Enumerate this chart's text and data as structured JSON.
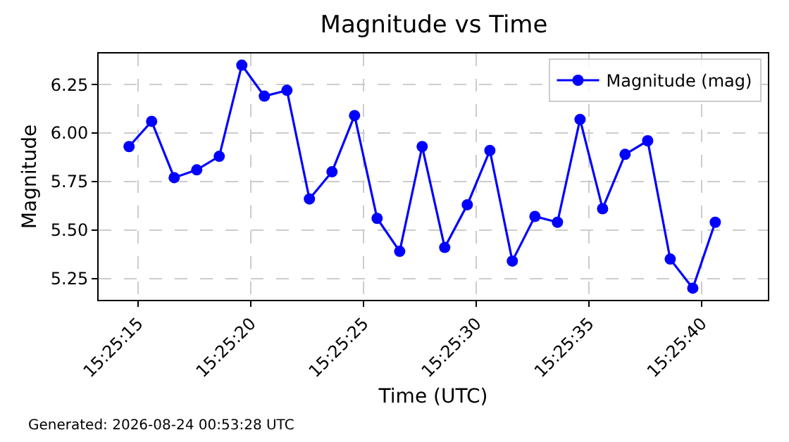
{
  "chart_data": {
    "type": "line",
    "title": "Magnitude vs Time",
    "xlabel": "Time (UTC)",
    "ylabel": "Magnitude",
    "x": [
      15.420722,
      15.421,
      15.421278,
      15.421556,
      15.421833,
      15.422111,
      15.422389,
      15.422667,
      15.422944,
      15.423222,
      15.4235,
      15.423778,
      15.424056,
      15.424333,
      15.424611,
      15.424889,
      15.425167,
      15.425444,
      15.425722,
      15.426,
      15.426278,
      15.426556,
      15.426833,
      15.427111,
      15.427389,
      15.427667,
      15.427944
    ],
    "series": [
      {
        "name": "Magnitude (mag)",
        "color": "#0000ff",
        "values": [
          5.93,
          6.06,
          5.77,
          5.81,
          5.88,
          6.35,
          6.19,
          6.22,
          5.66,
          5.8,
          6.09,
          5.56,
          5.39,
          5.93,
          5.41,
          5.63,
          5.91,
          5.34,
          5.57,
          5.54,
          6.07,
          5.61,
          5.89,
          5.96,
          5.35,
          5.2,
          5.54
        ]
      }
    ],
    "xlim": [
      15.420347,
      15.428592
    ],
    "xticks": [
      {
        "value": 15.420833,
        "label": "15:25:15"
      },
      {
        "value": 15.422222,
        "label": "15:25:20"
      },
      {
        "value": 15.423611,
        "label": "15:25:25"
      },
      {
        "value": 15.425,
        "label": "15:25:30"
      },
      {
        "value": 15.426389,
        "label": "15:25:35"
      },
      {
        "value": 15.427778,
        "label": "15:25:40"
      }
    ],
    "ylim": [
      5.14,
      6.41
    ],
    "yticks": [
      {
        "value": 5.25,
        "label": "5.25"
      },
      {
        "value": 5.5,
        "label": "5.50"
      },
      {
        "value": 5.75,
        "label": "5.75"
      },
      {
        "value": 6,
        "label": "6.00"
      },
      {
        "value": 6.25,
        "label": "6.25"
      }
    ],
    "grid": true,
    "legend": "top right",
    "marker": "circle",
    "line_style": "solid",
    "annotations": [
      "Generated: 2026-08-24 00:53:28 UTC"
    ]
  }
}
